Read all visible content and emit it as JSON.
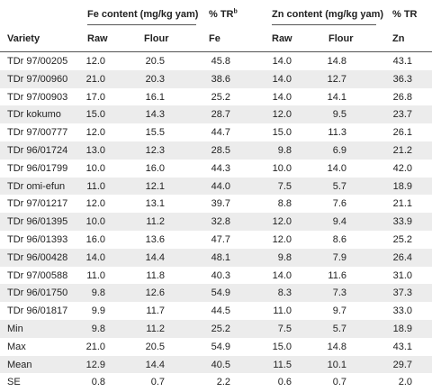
{
  "table": {
    "group_headers": {
      "fe": "Fe content (mg/kg yam)",
      "fe_tr": "% TR",
      "fe_tr_note": "b",
      "zn": "Zn content (mg/kg yam)",
      "zn_tr": "% TR"
    },
    "columns": [
      "Variety",
      "Raw",
      "Flour",
      "Fe",
      "Raw",
      "Flour",
      "Zn"
    ],
    "rows": [
      [
        "TDr 97/00205",
        "12.0",
        "20.5",
        "45.8",
        "14.0",
        "14.8",
        "43.1"
      ],
      [
        "TDr 97/00960",
        "21.0",
        "20.3",
        "38.6",
        "14.0",
        "12.7",
        "36.3"
      ],
      [
        "TDr 97/00903",
        "17.0",
        "16.1",
        "25.2",
        "14.0",
        "14.1",
        "26.8"
      ],
      [
        "TDr kokumo",
        "15.0",
        "14.3",
        "28.7",
        "12.0",
        "9.5",
        "23.7"
      ],
      [
        "TDr 97/00777",
        "12.0",
        "15.5",
        "44.7",
        "15.0",
        "11.3",
        "26.1"
      ],
      [
        "TDr 96/01724",
        "13.0",
        "12.3",
        "28.5",
        "9.8",
        "6.9",
        "21.2"
      ],
      [
        "TDr 96/01799",
        "10.0",
        "16.0",
        "44.3",
        "10.0",
        "14.0",
        "42.0"
      ],
      [
        "TDr omi-efun",
        "11.0",
        "12.1",
        "44.0",
        "7.5",
        "5.7",
        "18.9"
      ],
      [
        "TDr 97/01217",
        "12.0",
        "13.1",
        "39.7",
        "8.8",
        "7.6",
        "21.1"
      ],
      [
        "TDr 96/01395",
        "10.0",
        "11.2",
        "32.8",
        "12.0",
        "9.4",
        "33.9"
      ],
      [
        "TDr 96/01393",
        "16.0",
        "13.6",
        "47.7",
        "12.0",
        "8.6",
        "25.2"
      ],
      [
        "TDr 96/00428",
        "14.0",
        "14.4",
        "48.1",
        "9.8",
        "7.9",
        "26.4"
      ],
      [
        "TDr 97/00588",
        "11.0",
        "11.8",
        "40.3",
        "14.0",
        "11.6",
        "31.0"
      ],
      [
        "TDr 96/01750",
        "9.8",
        "12.6",
        "54.9",
        "8.3",
        "7.3",
        "37.3"
      ],
      [
        "TDr 96/01817",
        "9.9",
        "11.7",
        "44.5",
        "11.0",
        "9.7",
        "33.0"
      ],
      [
        "Min",
        "9.8",
        "11.2",
        "25.2",
        "7.5",
        "5.7",
        "18.9"
      ],
      [
        "Max",
        "21.0",
        "20.5",
        "54.9",
        "15.0",
        "14.8",
        "43.1"
      ],
      [
        "Mean",
        "12.9",
        "14.4",
        "40.5",
        "11.5",
        "10.1",
        "29.7"
      ],
      [
        "SE",
        "0.8",
        "0.7",
        "2.2",
        "0.6",
        "0.7",
        "2.0"
      ]
    ]
  }
}
